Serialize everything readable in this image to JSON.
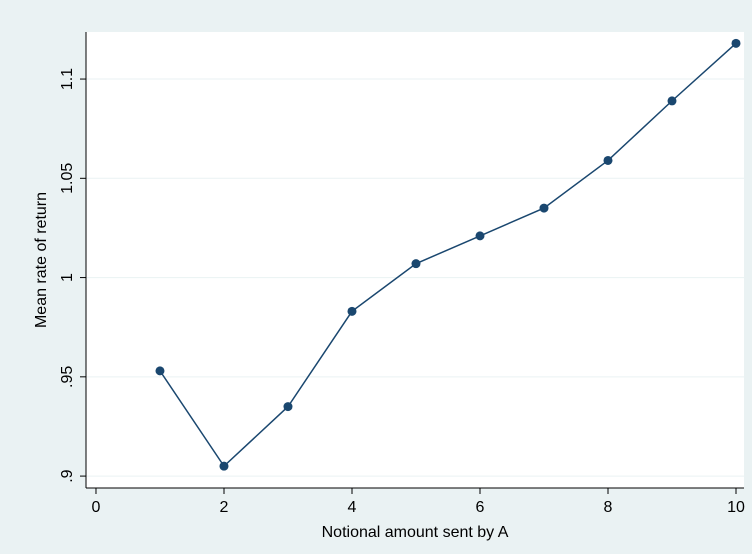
{
  "chart_data": {
    "type": "line",
    "x_label": "Notional amount sent by A",
    "y_label": "Mean rate of return",
    "x": [
      1,
      2,
      3,
      4,
      5,
      6,
      7,
      8,
      9,
      10
    ],
    "series": [
      {
        "color": "#1a476f",
        "values": [
          0.953,
          0.905,
          0.935,
          0.983,
          1.007,
          1.021,
          1.035,
          1.059,
          1.089,
          1.118
        ]
      }
    ],
    "xlim": [
      -0.156,
      10.125
    ],
    "ylim": [
      0.894,
      1.1237
    ],
    "xticks": [
      0,
      2,
      4,
      6,
      8,
      10
    ],
    "yticks": [
      {
        "value": 0.9,
        "label": ".9"
      },
      {
        "value": 0.95,
        "label": ".95"
      },
      1,
      1.05,
      1.1
    ],
    "grid": true
  }
}
